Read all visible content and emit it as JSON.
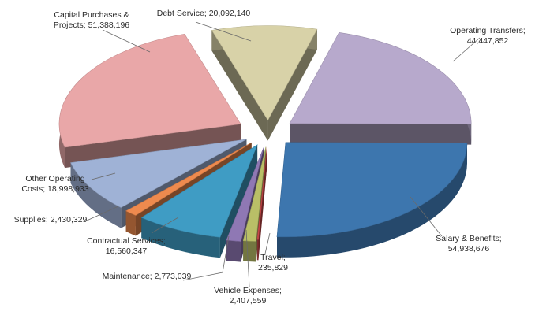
{
  "chart_data": {
    "type": "pie",
    "style": "3d-exploded",
    "slices": [
      {
        "label": "Debt Service",
        "value": 20092140,
        "value_text": "20,092,140",
        "color": "#d8d2a8"
      },
      {
        "label": "Operating Transfers",
        "value": 44447852,
        "value_text": "44,447,852",
        "color": "#b7a9cc"
      },
      {
        "label": "Salary & Benefits",
        "value": 54938676,
        "value_text": "54,938,676",
        "color": "#3d76ae"
      },
      {
        "label": "Travel",
        "value": 235829,
        "value_text": "235,829",
        "color": "#cc4a4a"
      },
      {
        "label": "Vehicle Expenses",
        "value": 2407559,
        "value_text": "2,407,559",
        "color": "#b9bf67"
      },
      {
        "label": "Maintenance",
        "value": 2773039,
        "value_text": "2,773,039",
        "color": "#8f78b4"
      },
      {
        "label": "Contractual Services",
        "value": 16560347,
        "value_text": "16,560,347",
        "color": "#3f9cc4"
      },
      {
        "label": "Supplies",
        "value": 2430329,
        "value_text": "2,430,329",
        "color": "#ee8a4e"
      },
      {
        "label": "Other Operating Costs",
        "value": 18998933,
        "value_text": "18,998,933",
        "color": "#9fb2d6"
      },
      {
        "label": "Capital Purchases & Projects",
        "value": 51388196,
        "value_text": "51,388,196",
        "color": "#e9a7a8"
      }
    ],
    "labels": [
      {
        "lines": [
          "Debt Service; 20,092,140"
        ]
      },
      {
        "lines": [
          "Operating Transfers;",
          "44,447,852"
        ]
      },
      {
        "lines": [
          "Salary & Benefits;",
          "54,938,676"
        ]
      },
      {
        "lines": [
          "Travel;",
          "235,829"
        ]
      },
      {
        "lines": [
          "Vehicle Expenses;",
          "2,407,559"
        ]
      },
      {
        "lines": [
          "Maintenance; 2,773,039"
        ]
      },
      {
        "lines": [
          "Contractual Services;",
          "16,560,347"
        ]
      },
      {
        "lines": [
          "Supplies; 2,430,329"
        ]
      },
      {
        "lines": [
          "Other Operating",
          "Costs; 18,998,933"
        ]
      },
      {
        "lines": [
          "Capital Purchases &",
          "Projects; 51,388,196"
        ]
      }
    ],
    "legend": "none",
    "grid": false
  }
}
